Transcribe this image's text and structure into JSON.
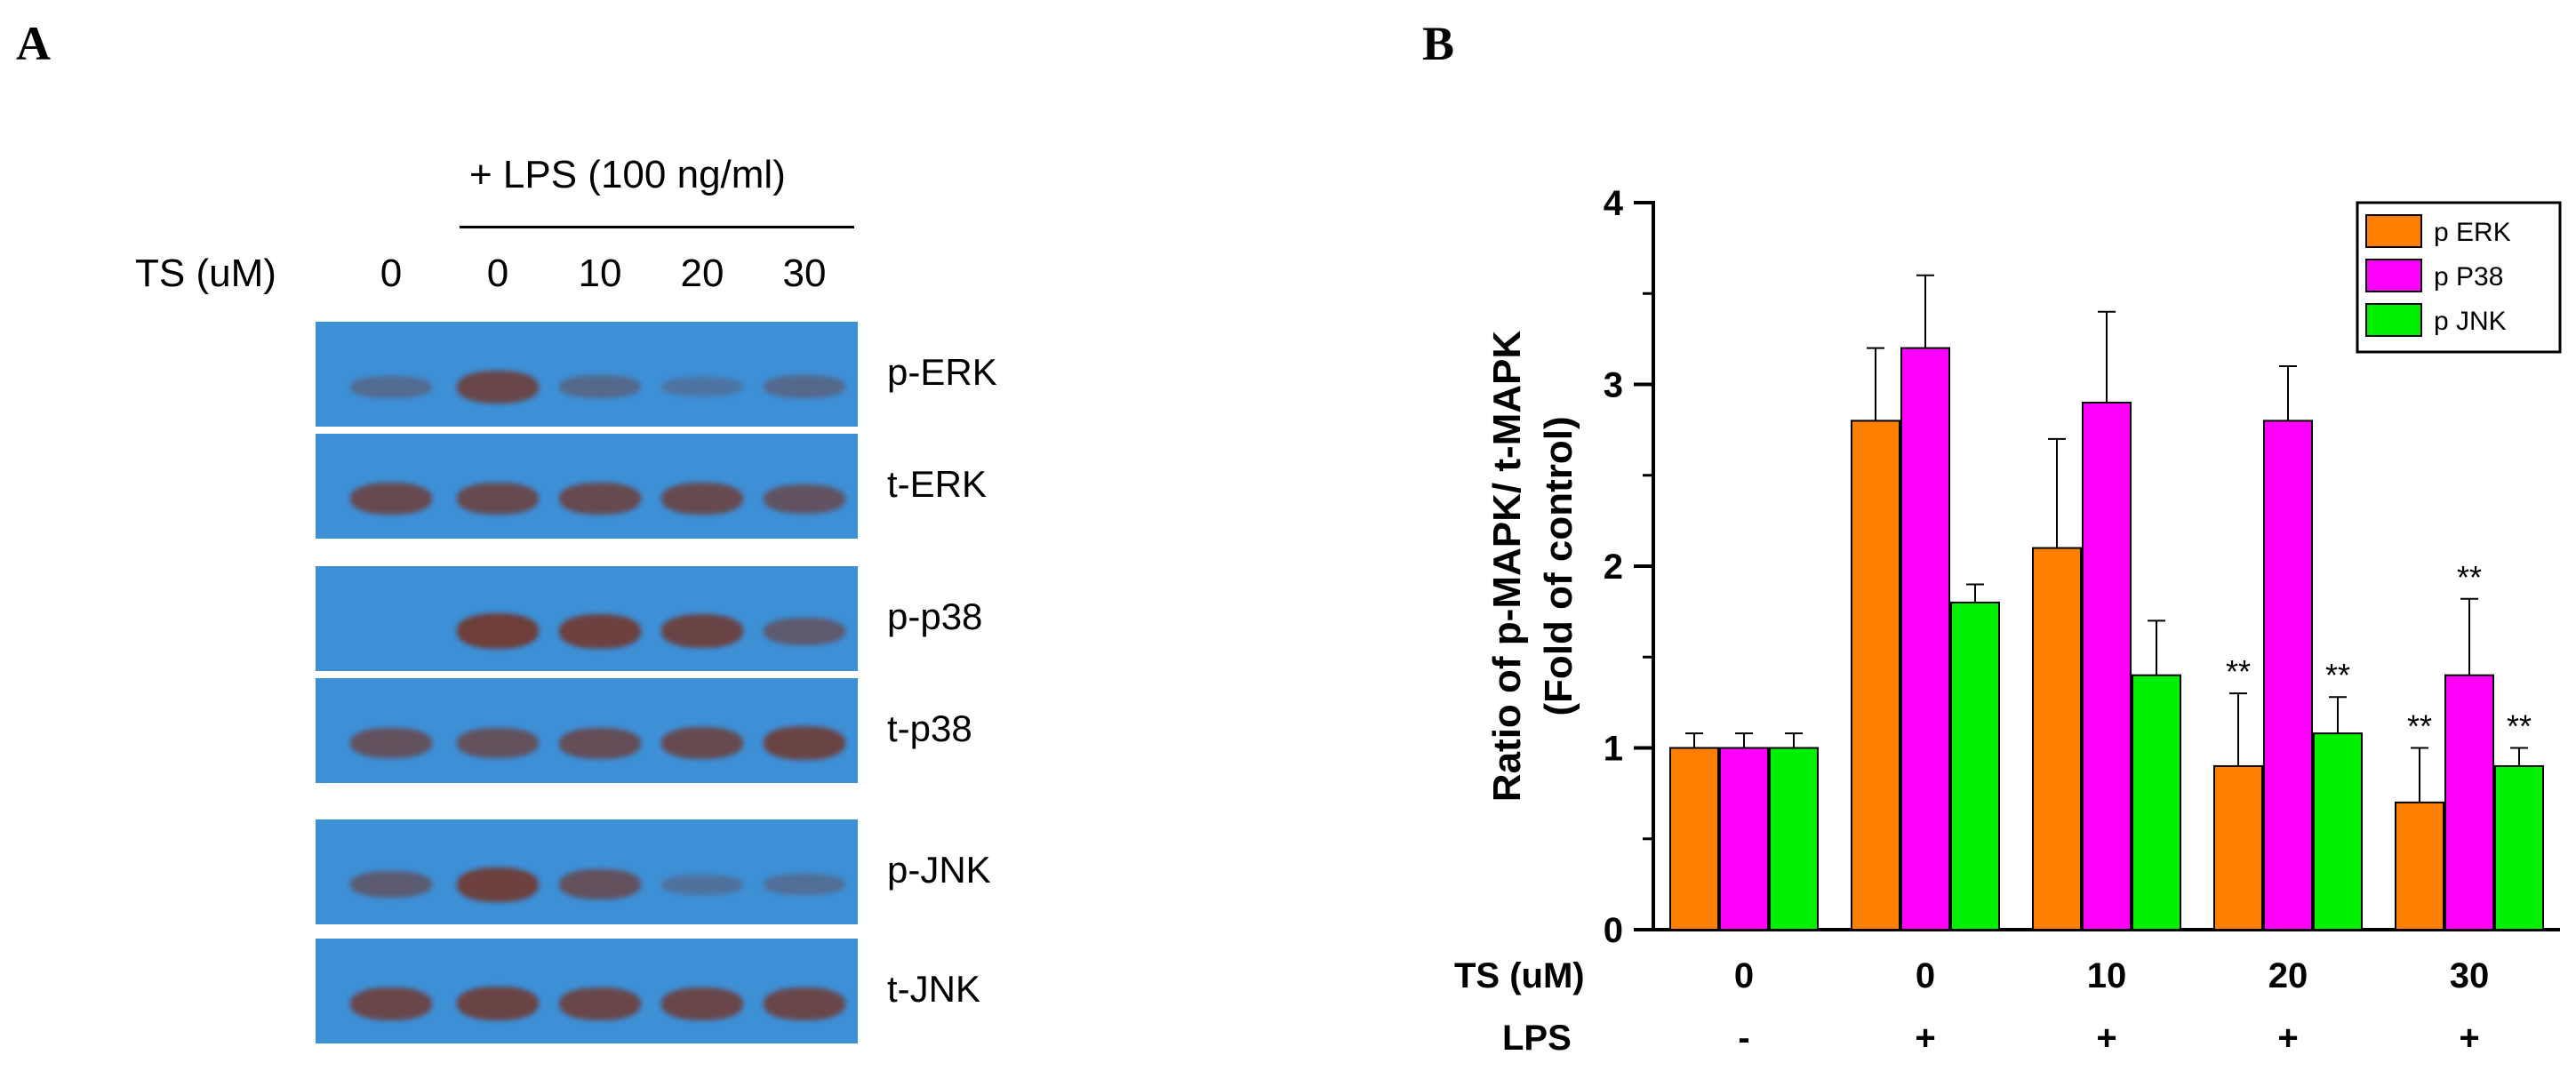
{
  "panel_a": {
    "letter": "A",
    "treatment_header": "+ LPS (100 ng/ml)",
    "ts_label": "TS (uM)",
    "lanes": [
      "0",
      "0",
      "10",
      "20",
      "30"
    ],
    "blots": [
      {
        "label": "p-ERK",
        "band_intensity": [
          0.25,
          0.85,
          0.3,
          0.1,
          0.3
        ]
      },
      {
        "label": "t-ERK",
        "band_intensity": [
          0.8,
          0.8,
          0.8,
          0.8,
          0.65
        ]
      },
      {
        "label": "p-p38",
        "band_intensity": [
          0.0,
          1.0,
          0.95,
          0.9,
          0.55
        ]
      },
      {
        "label": "t-p38",
        "band_intensity": [
          0.7,
          0.7,
          0.75,
          0.8,
          0.9
        ]
      },
      {
        "label": "p-JNK",
        "band_intensity": [
          0.5,
          0.95,
          0.7,
          0.15,
          0.2
        ]
      },
      {
        "label": "t-JNK",
        "band_intensity": [
          0.85,
          0.9,
          0.85,
          0.85,
          0.85
        ]
      }
    ],
    "colors": {
      "membrane": "#3d8fd6",
      "band": "#6e3e39"
    }
  },
  "panel_b": {
    "letter": "B",
    "chart_data": {
      "type": "bar",
      "ylabel_line1": "Ratio of p-MAPK/ t-MAPK",
      "ylabel_line2": "(Fold of control)",
      "ylim": [
        0,
        4
      ],
      "yticks": [
        "0",
        "1",
        "2",
        "3",
        "4"
      ],
      "row_labels": [
        "TS (uM)",
        "LPS"
      ],
      "categories": [
        "0",
        "0",
        "10",
        "20",
        "30"
      ],
      "lps": [
        "-",
        "+",
        "+",
        "+",
        "+"
      ],
      "series": [
        {
          "name": "p ERK",
          "color": "#ff7f00",
          "values": [
            1.0,
            2.8,
            2.1,
            0.9,
            0.7
          ],
          "errors": [
            0.08,
            0.4,
            0.6,
            0.4,
            0.3
          ],
          "marks": [
            "",
            "",
            "",
            "**",
            "**"
          ]
        },
        {
          "name": "p P38",
          "color": "#ff00ff",
          "values": [
            1.0,
            3.2,
            2.9,
            2.8,
            1.4
          ],
          "errors": [
            0.08,
            0.4,
            0.5,
            0.3,
            0.42
          ],
          "marks": [
            "",
            "",
            "",
            "",
            "**"
          ]
        },
        {
          "name": "p JNK",
          "color": "#00ee00",
          "values": [
            1.0,
            1.8,
            1.4,
            1.08,
            0.9
          ],
          "errors": [
            0.08,
            0.1,
            0.3,
            0.2,
            0.1
          ],
          "marks": [
            "",
            "",
            "",
            "**",
            "**"
          ]
        }
      ],
      "legend_position": "top-right"
    }
  }
}
